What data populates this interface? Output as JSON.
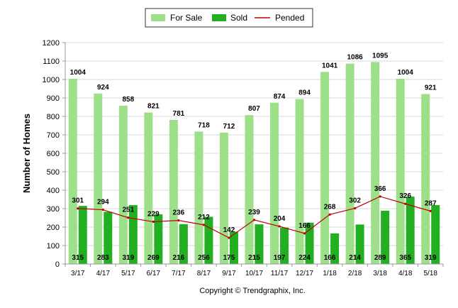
{
  "chart_data": {
    "type": "bar",
    "title": "",
    "ylabel": "Number of Homes",
    "xlabel": "",
    "ylim": [
      0,
      1200
    ],
    "yticks": [
      0,
      100,
      200,
      300,
      400,
      500,
      600,
      700,
      800,
      900,
      1000,
      1100,
      1200
    ],
    "categories": [
      "3/17",
      "4/17",
      "5/17",
      "6/17",
      "7/17",
      "8/17",
      "9/17",
      "10/17",
      "11/17",
      "12/17",
      "1/18",
      "2/18",
      "3/18",
      "4/18",
      "5/18"
    ],
    "series": [
      {
        "name": "For Sale",
        "kind": "bar",
        "color": "#9ee08a",
        "values": [
          1004,
          924,
          858,
          821,
          781,
          718,
          712,
          807,
          874,
          894,
          1041,
          1086,
          1095,
          1004,
          921
        ]
      },
      {
        "name": "Sold",
        "kind": "bar",
        "color": "#22b022",
        "values": [
          315,
          283,
          319,
          269,
          216,
          256,
          175,
          215,
          197,
          224,
          166,
          214,
          289,
          365,
          319
        ]
      },
      {
        "name": "Pended",
        "kind": "line",
        "color": "#c00000",
        "values": [
          301,
          294,
          251,
          229,
          236,
          212,
          142,
          239,
          204,
          166,
          268,
          302,
          366,
          326,
          287
        ]
      }
    ],
    "legend_position": "top-center",
    "grid": true
  },
  "footer": {
    "copyright": "Copyright © Trendgraphix, Inc."
  }
}
